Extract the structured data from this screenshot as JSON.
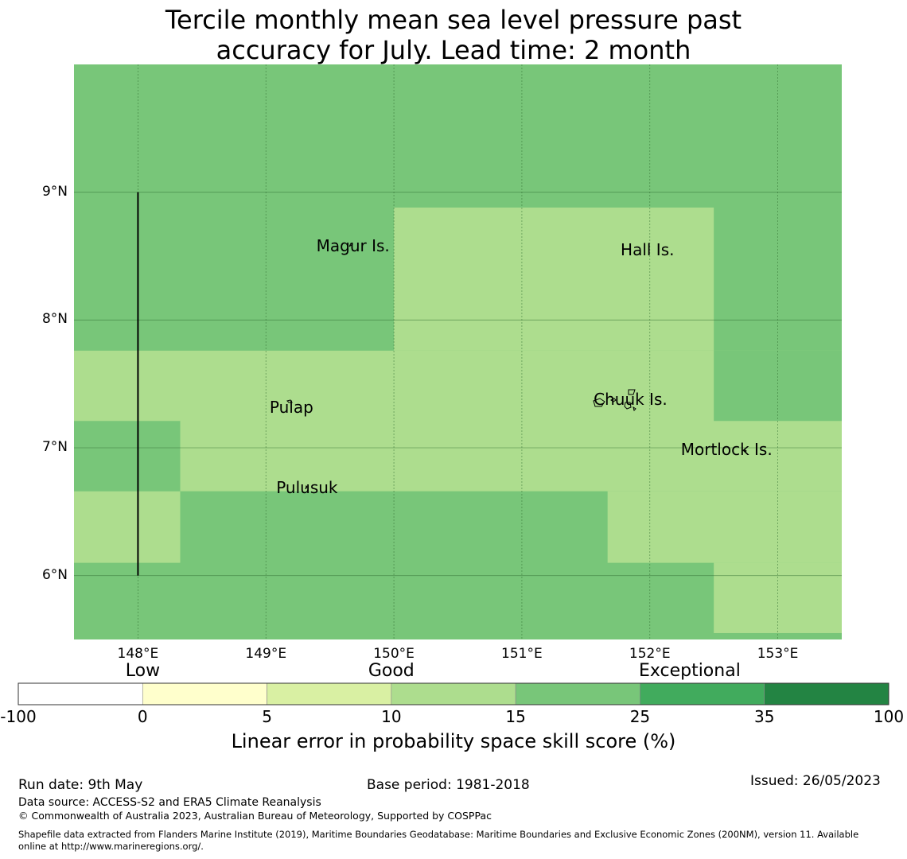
{
  "title": {
    "line1": "Tercile monthly mean sea level pressure past",
    "line2": "accuracy for July. Lead time: 2 month"
  },
  "map": {
    "lat_range": [
      5.5,
      10.0
    ],
    "lon_range": [
      147.5,
      153.5
    ],
    "lat_ticks": [
      {
        "value": 9,
        "label": "9°N"
      },
      {
        "value": 8,
        "label": "8°N"
      },
      {
        "value": 7,
        "label": "7°N"
      },
      {
        "value": 6,
        "label": "6°N"
      }
    ],
    "lon_ticks": [
      {
        "value": 148,
        "label": "148°E"
      },
      {
        "value": 149,
        "label": "149°E"
      },
      {
        "value": 150,
        "label": "150°E"
      },
      {
        "value": 151,
        "label": "151°E"
      },
      {
        "value": 152,
        "label": "152°E"
      },
      {
        "value": 153,
        "label": "153°E"
      }
    ],
    "background_color": "#78c679",
    "cells": [
      {
        "lon": [
          150.0,
          152.5
        ],
        "lat": [
          7.76,
          8.88
        ],
        "color": "#addd8e"
      },
      {
        "lon": [
          147.5,
          153.5
        ],
        "lat": [
          6.66,
          7.76
        ],
        "color": "#addd8e"
      },
      {
        "lon": [
          147.5,
          148.33
        ],
        "lat": [
          6.1,
          6.66
        ],
        "color": "#addd8e"
      },
      {
        "lon": [
          151.67,
          153.5
        ],
        "lat": [
          6.1,
          6.66
        ],
        "color": "#addd8e"
      },
      {
        "lon": [
          152.5,
          153.5
        ],
        "lat": [
          5.55,
          6.1
        ],
        "color": "#addd8e"
      },
      {
        "lon": [
          152.5,
          153.5
        ],
        "lat": [
          7.21,
          7.76
        ],
        "color": "#78c679"
      },
      {
        "lon": [
          147.5,
          148.33
        ],
        "lat": [
          6.66,
          7.21
        ],
        "color": "#78c679"
      }
    ],
    "boundary_line": {
      "lon": 148.0,
      "lat": [
        6.0,
        9.0
      ]
    },
    "places": [
      {
        "name": "Magur Is.",
        "lon": 149.68,
        "lat": 8.58
      },
      {
        "name": "Hall Is.",
        "lon": 151.98,
        "lat": 8.55
      },
      {
        "name": "Pulap",
        "lon": 149.2,
        "lat": 7.32
      },
      {
        "name": "Chuuk Is.",
        "lon": 151.85,
        "lat": 7.38
      },
      {
        "name": "Mortlock Is.",
        "lon": 152.6,
        "lat": 6.99
      },
      {
        "name": "Pulusuk",
        "lon": 149.32,
        "lat": 6.69
      }
    ]
  },
  "colorbar": {
    "categories": [
      {
        "label": "Low",
        "at": 1
      },
      {
        "label": "Good",
        "at": 3
      },
      {
        "label": "Exceptional",
        "at": 5.4
      }
    ],
    "bins": [
      {
        "from": "-100",
        "to": "0",
        "color": "#ffffff"
      },
      {
        "from": "0",
        "to": "5",
        "color": "#ffffcc"
      },
      {
        "from": "5",
        "to": "10",
        "color": "#d9f0a3"
      },
      {
        "from": "10",
        "to": "15",
        "color": "#addd8e"
      },
      {
        "from": "15",
        "to": "25",
        "color": "#78c679"
      },
      {
        "from": "25",
        "to": "35",
        "color": "#41ab5d"
      },
      {
        "from": "35",
        "to": "100",
        "color": "#238443"
      }
    ],
    "tick_labels": [
      "-100",
      "0",
      "5",
      "10",
      "15",
      "25",
      "35",
      "100"
    ],
    "label": "Linear error in probability space skill score (%)"
  },
  "footer": {
    "run_date": "Run date: 9th May",
    "base_period": "Base period: 1981-2018",
    "issued": "Issued: 26/05/2023",
    "data_source": "Data source: ACCESS-S2 and ERA5 Climate Reanalysis",
    "copyright": "© Commonwealth of Australia 2023, Australian Bureau of Meteorology, Supported by COSPPac",
    "shapefile_line1": "Shapefile data extracted from Flanders Marine Institute (2019), Maritime Boundaries Geodatabase: Maritime Boundaries and Exclusive Economic Zones (200NM), version 11. Available",
    "shapefile_line2": "online at http://www.marineregions.org/."
  }
}
